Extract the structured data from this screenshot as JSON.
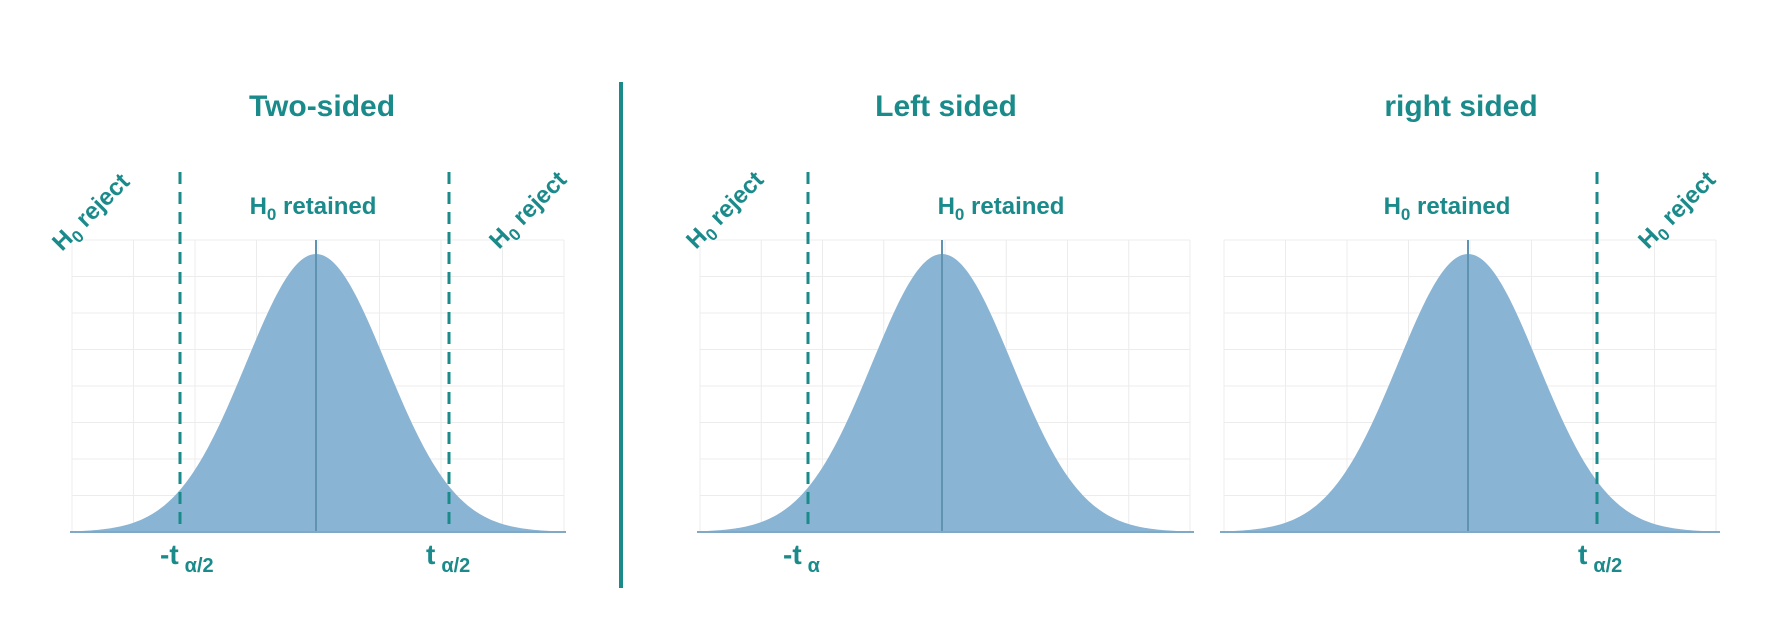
{
  "colors": {
    "accent": "#1a8a8a",
    "curve_fill": "#8ab4d4",
    "center_line": "#5f93b0",
    "grid": "#ececec"
  },
  "divider": true,
  "panels": [
    {
      "title": "Two-sided",
      "retained_main": "H",
      "retained_sub": "0",
      "retained_rest": " retained",
      "left_reject": {
        "main": "H",
        "sub": "0",
        "rest": " reject"
      },
      "right_reject": {
        "main": "H",
        "sub": "0",
        "rest": " reject"
      },
      "left_label": {
        "main": "-t",
        "sub": "α/2"
      },
      "right_label": {
        "main": "t",
        "sub": "α/2"
      }
    },
    {
      "title": "Left sided",
      "retained_main": "H",
      "retained_sub": "0",
      "retained_rest": " retained",
      "left_reject": {
        "main": "H",
        "sub": "0",
        "rest": " reject"
      },
      "left_label": {
        "main": "-t",
        "sub": "α"
      }
    },
    {
      "title": "right sided",
      "retained_main": "H",
      "retained_sub": "0",
      "retained_rest": " retained",
      "right_reject": {
        "main": "H",
        "sub": "0",
        "rest": " reject"
      },
      "right_label": {
        "main": "t",
        "sub": "α/2"
      }
    }
  ]
}
